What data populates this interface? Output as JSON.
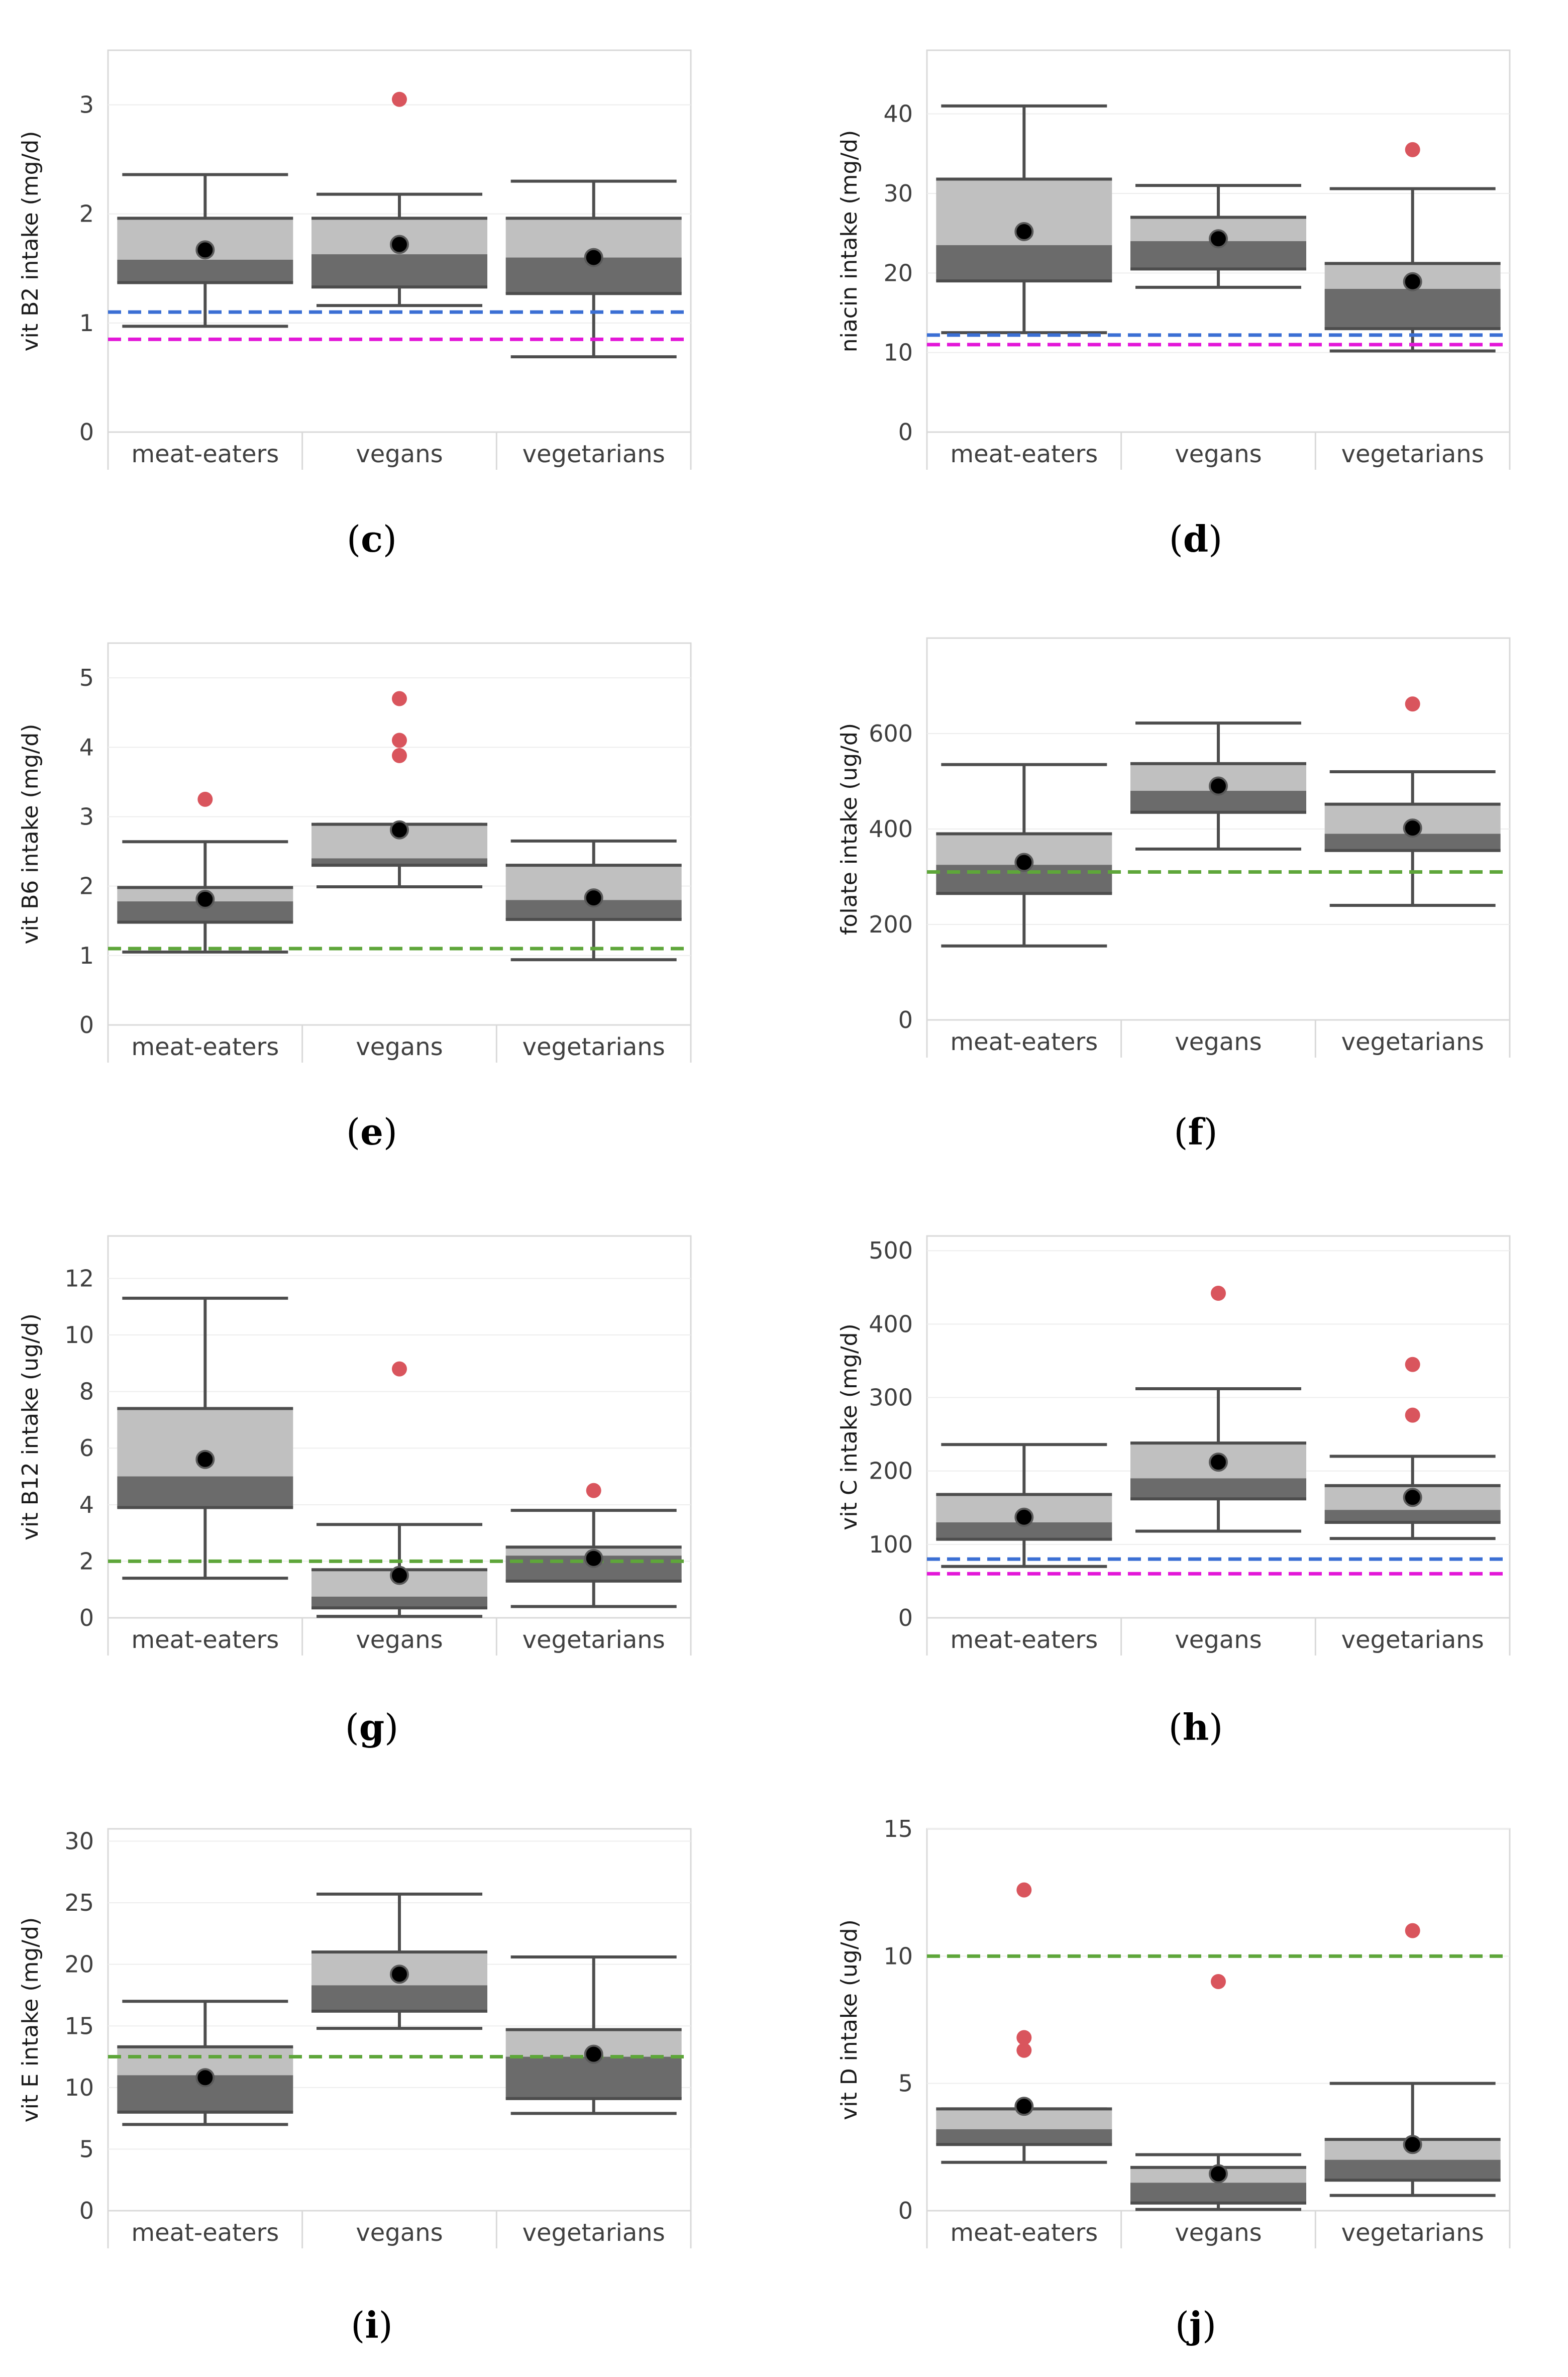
{
  "colors": {
    "upper_box": "#c0c0c0",
    "lower_box": "#6b6b6b",
    "mean": "#000000",
    "outlier": "#d9555d",
    "blue_ref": "#3b6fd4",
    "magenta_ref": "#e317d8",
    "green_ref": "#5ea63a"
  },
  "chart_data": [
    {
      "id": "c",
      "type": "boxplot",
      "caption_label": "c",
      "ylabel": "vit B2 intake (mg/d)",
      "ylim": [
        0,
        3.5
      ],
      "yticks": [
        0,
        1,
        2,
        3
      ],
      "categories": [
        "meat-eaters",
        "vegans",
        "vegetarians"
      ],
      "boxes": [
        {
          "min": 0.97,
          "q1": 1.37,
          "median": 1.58,
          "q3": 1.96,
          "max": 2.36,
          "mean": 1.67,
          "outliers": []
        },
        {
          "min": 1.16,
          "q1": 1.33,
          "median": 1.63,
          "q3": 1.96,
          "max": 2.18,
          "mean": 1.72,
          "outliers": [
            3.05
          ]
        },
        {
          "min": 0.69,
          "q1": 1.27,
          "median": 1.6,
          "q3": 1.96,
          "max": 2.3,
          "mean": 1.6,
          "outliers": []
        }
      ],
      "ref_lines": [
        {
          "value": 1.1,
          "color": "blue"
        },
        {
          "value": 0.85,
          "color": "magenta"
        }
      ]
    },
    {
      "id": "d",
      "type": "boxplot",
      "caption_label": "d",
      "ylabel": "niacin intake (mg/d)",
      "ylim": [
        0,
        48
      ],
      "yticks": [
        0,
        10,
        20,
        30,
        40
      ],
      "categories": [
        "meat-eaters",
        "vegans",
        "vegetarians"
      ],
      "boxes": [
        {
          "min": 12.5,
          "q1": 19,
          "median": 23.5,
          "q3": 31.8,
          "max": 41,
          "mean": 25.2,
          "outliers": []
        },
        {
          "min": 18.2,
          "q1": 20.5,
          "median": 24,
          "q3": 27,
          "max": 31,
          "mean": 24.3,
          "outliers": []
        },
        {
          "min": 10.2,
          "q1": 13,
          "median": 18,
          "q3": 21.2,
          "max": 30.6,
          "mean": 18.9,
          "outliers": [
            35.5
          ]
        }
      ],
      "ref_lines": [
        {
          "value": 12.2,
          "color": "blue"
        },
        {
          "value": 11,
          "color": "magenta"
        }
      ]
    },
    {
      "id": "e",
      "type": "boxplot",
      "caption_label": "e",
      "ylabel": "vit B6 intake (mg/d)",
      "ylim": [
        0,
        5.5
      ],
      "yticks": [
        0,
        1,
        2,
        3,
        4,
        5
      ],
      "categories": [
        "meat-eaters",
        "vegans",
        "vegetarians"
      ],
      "boxes": [
        {
          "min": 1.05,
          "q1": 1.48,
          "median": 1.78,
          "q3": 1.98,
          "max": 2.64,
          "mean": 1.81,
          "outliers": [
            3.25
          ]
        },
        {
          "min": 1.99,
          "q1": 2.3,
          "median": 2.4,
          "q3": 2.89,
          "max": 2.89,
          "mean": 2.81,
          "outliers": [
            4.7,
            4.1,
            3.88
          ]
        },
        {
          "min": 0.94,
          "q1": 1.52,
          "median": 1.8,
          "q3": 2.3,
          "max": 2.65,
          "mean": 1.83,
          "outliers": []
        }
      ],
      "ref_lines": [
        {
          "value": 1.1,
          "color": "green"
        }
      ]
    },
    {
      "id": "f",
      "type": "boxplot",
      "caption_label": "f",
      "ylabel": "folate intake (ug/d)",
      "ylim": [
        0,
        800
      ],
      "yticks": [
        0,
        200,
        400,
        600
      ],
      "categories": [
        "meat-eaters",
        "vegans",
        "vegetarians"
      ],
      "boxes": [
        {
          "min": 155,
          "q1": 265,
          "median": 325,
          "q3": 390,
          "max": 535,
          "mean": 330,
          "outliers": []
        },
        {
          "min": 358,
          "q1": 435,
          "median": 480,
          "q3": 537,
          "max": 622,
          "mean": 490,
          "outliers": []
        },
        {
          "min": 240,
          "q1": 355,
          "median": 390,
          "q3": 452,
          "max": 520,
          "mean": 402,
          "outliers": [
            662
          ]
        }
      ],
      "ref_lines": [
        {
          "value": 310,
          "color": "green"
        }
      ]
    },
    {
      "id": "g",
      "type": "boxplot",
      "caption_label": "g",
      "ylabel": "vit B12 intake (ug/d)",
      "ylim": [
        0,
        13.5
      ],
      "yticks": [
        0,
        2,
        4,
        6,
        8,
        10,
        12
      ],
      "categories": [
        "meat-eaters",
        "vegans",
        "vegetarians"
      ],
      "boxes": [
        {
          "min": 1.4,
          "q1": 3.9,
          "median": 5,
          "q3": 7.4,
          "max": 11.3,
          "mean": 5.6,
          "outliers": []
        },
        {
          "min": 0.05,
          "q1": 0.35,
          "median": 0.75,
          "q3": 1.7,
          "max": 3.3,
          "mean": 1.5,
          "outliers": [
            8.8
          ]
        },
        {
          "min": 0.4,
          "q1": 1.3,
          "median": 2.2,
          "q3": 2.5,
          "max": 3.8,
          "mean": 2.1,
          "outliers": [
            4.5
          ]
        }
      ],
      "ref_lines": [
        {
          "value": 2.0,
          "color": "green"
        }
      ]
    },
    {
      "id": "h",
      "type": "boxplot",
      "caption_label": "h",
      "ylabel": "vit C intake (mg/d)",
      "ylim": [
        0,
        520
      ],
      "yticks": [
        0,
        100,
        200,
        300,
        400,
        500
      ],
      "categories": [
        "meat-eaters",
        "vegans",
        "vegetarians"
      ],
      "boxes": [
        {
          "min": 70,
          "q1": 107,
          "median": 130,
          "q3": 168,
          "max": 236,
          "mean": 137,
          "outliers": []
        },
        {
          "min": 118,
          "q1": 162,
          "median": 190,
          "q3": 238,
          "max": 312,
          "mean": 212,
          "outliers": [
            442
          ]
        },
        {
          "min": 108,
          "q1": 130,
          "median": 147,
          "q3": 180,
          "max": 220,
          "mean": 164,
          "outliers": [
            345,
            276
          ]
        }
      ],
      "ref_lines": [
        {
          "value": 80,
          "color": "blue"
        },
        {
          "value": 60,
          "color": "magenta"
        }
      ]
    },
    {
      "id": "i",
      "type": "boxplot",
      "caption_label": "i",
      "ylabel": "vit E intake (mg/d)",
      "ylim": [
        0,
        31
      ],
      "yticks": [
        0,
        5,
        10,
        15,
        20,
        25,
        30
      ],
      "categories": [
        "meat-eaters",
        "vegans",
        "vegetarians"
      ],
      "boxes": [
        {
          "min": 7,
          "q1": 8,
          "median": 11,
          "q3": 13.3,
          "max": 17,
          "mean": 10.8,
          "outliers": []
        },
        {
          "min": 14.8,
          "q1": 16.2,
          "median": 18.3,
          "q3": 21,
          "max": 25.7,
          "mean": 19.2,
          "outliers": []
        },
        {
          "min": 7.9,
          "q1": 9.1,
          "median": 12.5,
          "q3": 14.7,
          "max": 20.6,
          "mean": 12.7,
          "outliers": []
        }
      ],
      "ref_lines": [
        {
          "value": 12.5,
          "color": "green"
        }
      ]
    },
    {
      "id": "j",
      "type": "boxplot",
      "caption_label": "j",
      "ylabel": "vit D intake (ug/d)",
      "ylim": [
        0,
        15
      ],
      "yticks": [
        0,
        5,
        10,
        15
      ],
      "categories": [
        "meat-eaters",
        "vegans",
        "vegetarians"
      ],
      "boxes": [
        {
          "min": 1.9,
          "q1": 2.6,
          "median": 3.2,
          "q3": 4.0,
          "max": 4.0,
          "mean": 4.1,
          "outliers": [
            12.6,
            6.8,
            6.3
          ]
        },
        {
          "min": 0.05,
          "q1": 0.3,
          "median": 1.1,
          "q3": 1.7,
          "max": 2.2,
          "mean": 1.45,
          "outliers": [
            9.0
          ]
        },
        {
          "min": 0.6,
          "q1": 1.2,
          "median": 2.0,
          "q3": 2.8,
          "max": 5.0,
          "mean": 2.6,
          "outliers": [
            11.0
          ]
        }
      ],
      "ref_lines": [
        {
          "value": 10,
          "color": "green"
        }
      ]
    }
  ]
}
